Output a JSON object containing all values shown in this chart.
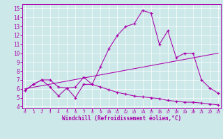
{
  "xlabel": "Windchill (Refroidissement éolien,°C)",
  "bg_color": "#cce8e8",
  "line_color": "#aa00aa",
  "x_ticks": [
    0,
    1,
    2,
    3,
    4,
    5,
    6,
    7,
    8,
    9,
    10,
    11,
    12,
    13,
    14,
    15,
    16,
    17,
    18,
    19,
    20,
    21,
    22,
    23
  ],
  "ylim": [
    3.8,
    15.5
  ],
  "xlim": [
    -0.3,
    23.3
  ],
  "yticks": [
    4,
    5,
    6,
    7,
    8,
    9,
    10,
    11,
    12,
    13,
    14,
    15
  ],
  "line1_x": [
    0,
    1,
    2,
    3,
    4,
    5,
    6,
    7,
    8,
    9,
    10,
    11,
    12,
    13,
    14,
    15,
    16,
    17,
    18,
    19,
    20,
    21,
    22,
    23
  ],
  "line1_y": [
    5.8,
    6.5,
    7.0,
    7.0,
    6.2,
    6.1,
    6.2,
    7.3,
    6.5,
    8.5,
    10.5,
    12.0,
    13.0,
    13.3,
    14.8,
    14.5,
    11.0,
    12.5,
    9.5,
    10.0,
    10.0,
    7.0,
    6.1,
    5.5
  ],
  "line2_x": [
    0,
    23
  ],
  "line2_y": [
    6.0,
    10.0
  ],
  "line3_x": [
    0,
    1,
    2,
    3,
    4,
    5,
    6,
    7,
    8,
    9,
    10,
    11,
    12,
    13,
    14,
    15,
    16,
    17,
    18,
    19,
    20,
    21,
    22,
    23
  ],
  "line3_y": [
    5.8,
    6.5,
    7.0,
    6.2,
    5.2,
    6.1,
    5.0,
    6.5,
    6.5,
    6.2,
    5.9,
    5.6,
    5.4,
    5.2,
    5.1,
    5.0,
    4.9,
    4.7,
    4.6,
    4.5,
    4.5,
    4.4,
    4.3,
    4.2
  ]
}
